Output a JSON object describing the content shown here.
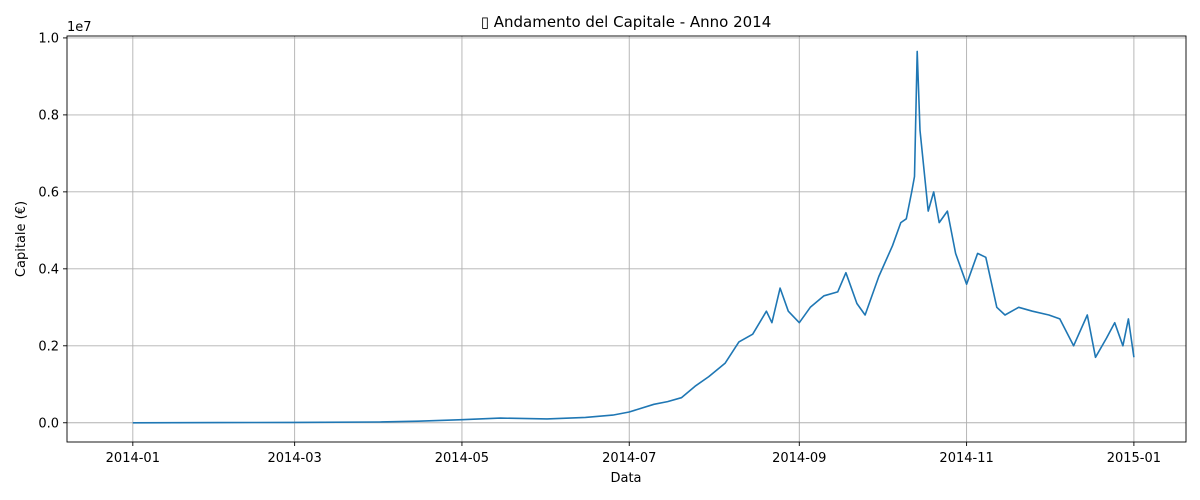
{
  "chart_data": {
    "type": "line",
    "title": "▯ Andamento del Capitale - Anno 2014",
    "xlabel": "Data",
    "ylabel": "Capitale (€)",
    "y_offset_label": "1e7",
    "y_tick_labels": [
      "0.0",
      "0.2",
      "0.4",
      "0.6",
      "0.8",
      "1.0"
    ],
    "y_ticks": [
      0,
      0.2,
      0.4,
      0.6,
      0.8,
      1.0
    ],
    "x_tick_labels": [
      "2014-01",
      "2014-03",
      "2014-05",
      "2014-07",
      "2014-09",
      "2014-11",
      "2015-01"
    ],
    "x_ticks": [
      "2014-01-01",
      "2014-03-01",
      "2014-05-01",
      "2014-07-01",
      "2014-09-01",
      "2014-11-01",
      "2015-01-01"
    ],
    "xlim": [
      "2013-12-08",
      "2015-01-20"
    ],
    "ylim": [
      -0.05,
      1.005
    ],
    "y_units": "1e7 €",
    "grid": true,
    "line_color": "#1f77b4",
    "series": [
      {
        "x": [
          "2014-01-01",
          "2014-02-01",
          "2014-03-01",
          "2014-04-01",
          "2014-04-15",
          "2014-05-01",
          "2014-05-15",
          "2014-06-01",
          "2014-06-15",
          "2014-06-25",
          "2014-07-01",
          "2014-07-10",
          "2014-07-15",
          "2014-07-20",
          "2014-07-25",
          "2014-07-30",
          "2014-08-05",
          "2014-08-10",
          "2014-08-15",
          "2014-08-20",
          "2014-08-22",
          "2014-08-25",
          "2014-08-28",
          "2014-09-01",
          "2014-09-05",
          "2014-09-10",
          "2014-09-15",
          "2014-09-18",
          "2014-09-22",
          "2014-09-25",
          "2014-09-30",
          "2014-10-05",
          "2014-10-08",
          "2014-10-10",
          "2014-10-12",
          "2014-10-13",
          "2014-10-14",
          "2014-10-15",
          "2014-10-18",
          "2014-10-20",
          "2014-10-22",
          "2014-10-25",
          "2014-10-28",
          "2014-11-01",
          "2014-11-05",
          "2014-11-08",
          "2014-11-12",
          "2014-11-15",
          "2014-11-20",
          "2014-11-25",
          "2014-12-01",
          "2014-12-05",
          "2014-12-10",
          "2014-12-15",
          "2014-12-18",
          "2014-12-22",
          "2014-12-25",
          "2014-12-28",
          "2014-12-30",
          "2015-01-01"
        ],
        "y": [
          0.0,
          0.0005,
          0.001,
          0.002,
          0.004,
          0.008,
          0.012,
          0.01,
          0.014,
          0.02,
          0.028,
          0.048,
          0.055,
          0.065,
          0.095,
          0.12,
          0.155,
          0.21,
          0.23,
          0.29,
          0.26,
          0.35,
          0.29,
          0.26,
          0.3,
          0.33,
          0.34,
          0.39,
          0.31,
          0.28,
          0.38,
          0.46,
          0.52,
          0.53,
          0.6,
          0.64,
          0.965,
          0.76,
          0.55,
          0.6,
          0.52,
          0.55,
          0.44,
          0.36,
          0.44,
          0.43,
          0.3,
          0.28,
          0.3,
          0.29,
          0.28,
          0.27,
          0.2,
          0.28,
          0.17,
          0.22,
          0.26,
          0.2,
          0.27,
          0.17
        ]
      }
    ]
  }
}
